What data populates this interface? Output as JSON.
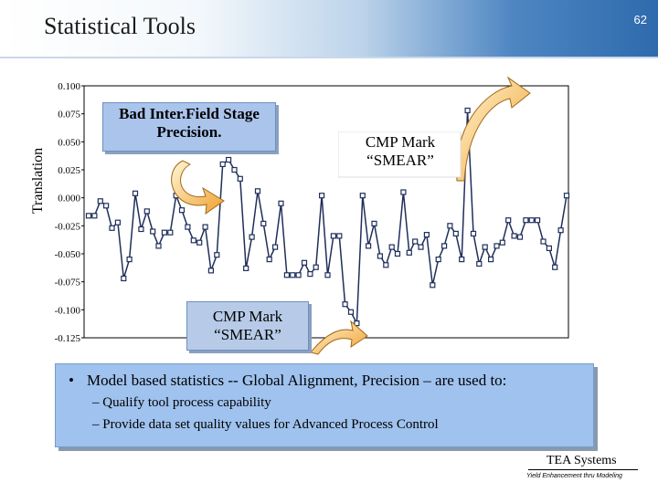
{
  "header": {
    "title": "Statistical Tools",
    "slide_number": "62"
  },
  "callouts": {
    "top_left": "Bad Inter.Field Stage Precision.",
    "top_right": "CMP Mark “SMEAR”",
    "bottom": "CMP Mark “SMEAR”"
  },
  "bullets": {
    "main": "Model based statistics -- Global Alignment, Precision – are used to:",
    "subs": [
      "– Qualify tool process capability",
      "– Provide data set quality values for Advanced Process Control"
    ]
  },
  "footer": {
    "company": "TEA Systems",
    "tagline": "Yield Enhancement thru Modeling"
  },
  "colors": {
    "line": "#1f2f5a",
    "marker_fill": "#ffffff",
    "arrow": "#f0a030"
  },
  "chart_data": {
    "type": "line",
    "ylabel": "Translation",
    "xlabel": "",
    "ylim": [
      -0.125,
      0.1
    ],
    "yticks": [
      "0.100",
      "0.075",
      "0.050",
      "0.025",
      "0.000",
      "-0.025",
      "-0.050",
      "-0.075",
      "-0.100",
      "-0.125"
    ],
    "grid": false,
    "series": [
      {
        "values": [
          -0.016,
          -0.016,
          -0.003,
          -0.007,
          -0.027,
          -0.022,
          -0.072,
          -0.055,
          0.004,
          -0.028,
          -0.012,
          -0.03,
          -0.043,
          -0.031,
          -0.031,
          0.002,
          -0.011,
          -0.026,
          -0.038,
          -0.04,
          -0.026,
          -0.065,
          -0.051,
          0.03,
          0.034,
          0.025,
          0.017,
          -0.063,
          -0.035,
          0.006,
          -0.023,
          -0.055,
          -0.044,
          -0.005,
          -0.069,
          -0.069,
          -0.069,
          -0.058,
          -0.068,
          -0.062,
          0.002,
          -0.069,
          -0.034,
          -0.034,
          -0.095,
          -0.102,
          -0.112,
          0.002,
          -0.043,
          -0.023,
          -0.052,
          -0.06,
          -0.044,
          -0.05,
          0.005,
          -0.049,
          -0.039,
          -0.044,
          -0.033,
          -0.078,
          -0.055,
          -0.043,
          -0.025,
          -0.032,
          -0.055,
          0.078,
          -0.032,
          -0.059,
          -0.044,
          -0.055,
          -0.043,
          -0.04,
          -0.02,
          -0.034,
          -0.035,
          -0.02,
          -0.02,
          -0.02,
          -0.039,
          -0.045,
          -0.062,
          -0.029,
          0.002
        ]
      }
    ]
  }
}
